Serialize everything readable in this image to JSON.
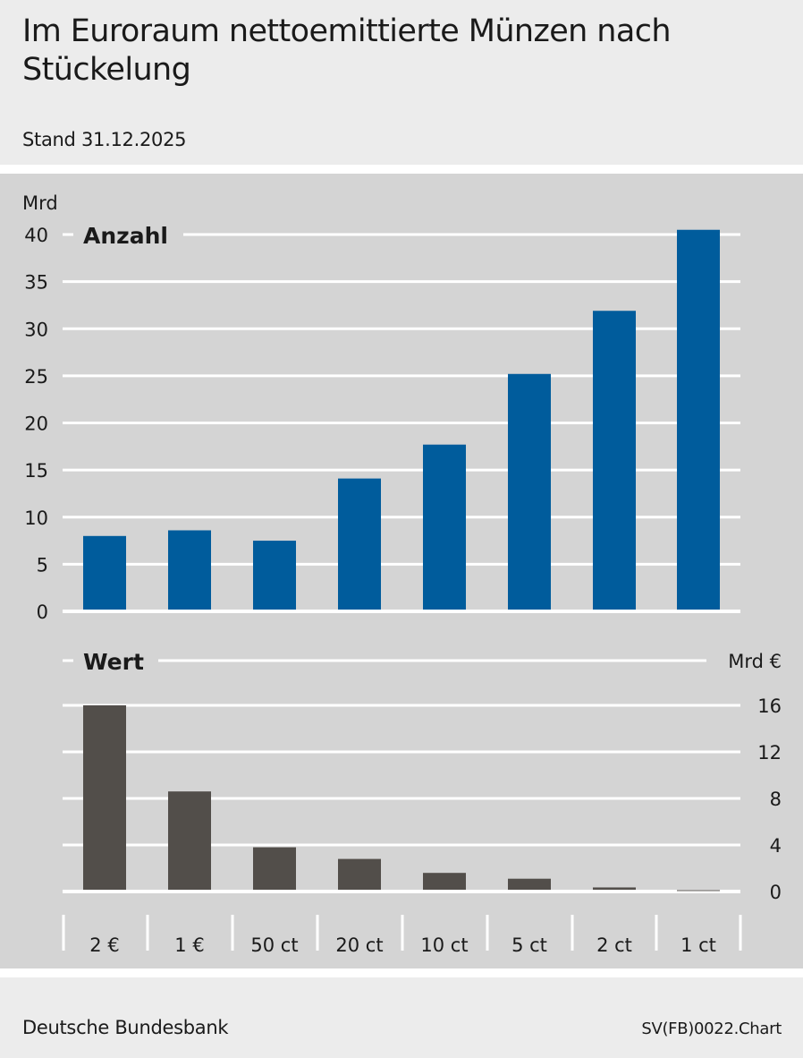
{
  "header": {
    "title": "Im Euroraum nettoemittierte Münzen nach Stückelung",
    "subtitle": "Stand 31.12.2025"
  },
  "footer": {
    "source": "Deutsche Bundesbank",
    "chart_id": "SV(FB)0022.Chart"
  },
  "colors": {
    "background": "#ececec",
    "plot_background": "#d4d4d4",
    "gridline": "#ffffff",
    "anzahl_bar": "#005c9c",
    "wert_bar": "#524e4a"
  },
  "chart_data": [
    {
      "type": "bar",
      "panel_label": "Anzahl",
      "unit": "Mrd",
      "axis_side": "left",
      "ylim": [
        0,
        40
      ],
      "yticks": [
        "0",
        "5",
        "10",
        "15",
        "20",
        "25",
        "30",
        "35",
        "40"
      ],
      "grid": true,
      "categories": [
        "2 €",
        "1 €",
        "50 ct",
        "20 ct",
        "10 ct",
        "5 ct",
        "2 ct",
        "1 ct"
      ],
      "values": [
        8.0,
        8.6,
        7.5,
        14.1,
        17.7,
        25.2,
        31.9,
        40.5
      ]
    },
    {
      "type": "bar",
      "panel_label": "Wert",
      "unit": "Mrd €",
      "axis_side": "right",
      "ylim": [
        0,
        16
      ],
      "yticks": [
        "0",
        "4",
        "8",
        "12",
        "16"
      ],
      "grid": true,
      "categories": [
        "2 €",
        "1 €",
        "50 ct",
        "20 ct",
        "10 ct",
        "5 ct",
        "2 ct",
        "1 ct"
      ],
      "values": [
        16.0,
        8.6,
        3.8,
        2.8,
        1.6,
        1.1,
        0.35,
        0.12
      ]
    }
  ]
}
